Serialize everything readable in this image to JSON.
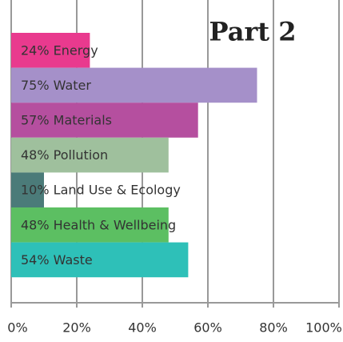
{
  "chart_data": {
    "type": "barh",
    "title": "Part 2",
    "categories": [
      "24% Energy",
      "75% Water",
      "57% Materials",
      "48% Pollution",
      "10% Land Use & Ecology",
      "48% Health & Wellbeing",
      "54% Waste"
    ],
    "values": [
      24,
      75,
      57,
      48,
      10,
      48,
      54
    ],
    "colors": [
      "#e93a8e",
      "#a590c9",
      "#b54f9f",
      "#9fc09d",
      "#4b7b79",
      "#5cbf62",
      "#2ec0b8"
    ],
    "xlim": [
      0,
      100
    ],
    "xticks": [
      {
        "value": 0,
        "label": "0%"
      },
      {
        "value": 20,
        "label": "20%"
      },
      {
        "value": 40,
        "label": "40%"
      },
      {
        "value": 60,
        "label": "60%"
      },
      {
        "value": 80,
        "label": "80%"
      },
      {
        "value": 100,
        "label": "100%"
      }
    ],
    "grid": true
  }
}
